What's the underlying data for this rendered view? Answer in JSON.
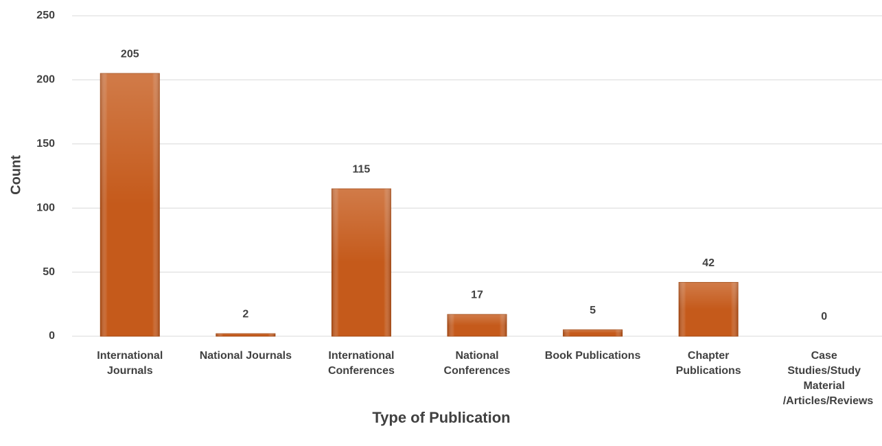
{
  "chart_data": {
    "type": "bar",
    "x_label": "Type of Publication",
    "y_label": "Count",
    "categories": [
      "International Journals",
      "National Journals",
      "International Conferences",
      "National Conferences",
      "Book Publications",
      "Chapter Publications",
      "Case Studies/Study Material /Articles/Reviews"
    ],
    "values": [
      205,
      2,
      115,
      17,
      5,
      42,
      0
    ],
    "color": "#c55a1b",
    "ylim": [
      0,
      250
    ],
    "yticks": [
      0,
      50,
      100,
      150,
      200,
      250
    ],
    "grid": true
  }
}
